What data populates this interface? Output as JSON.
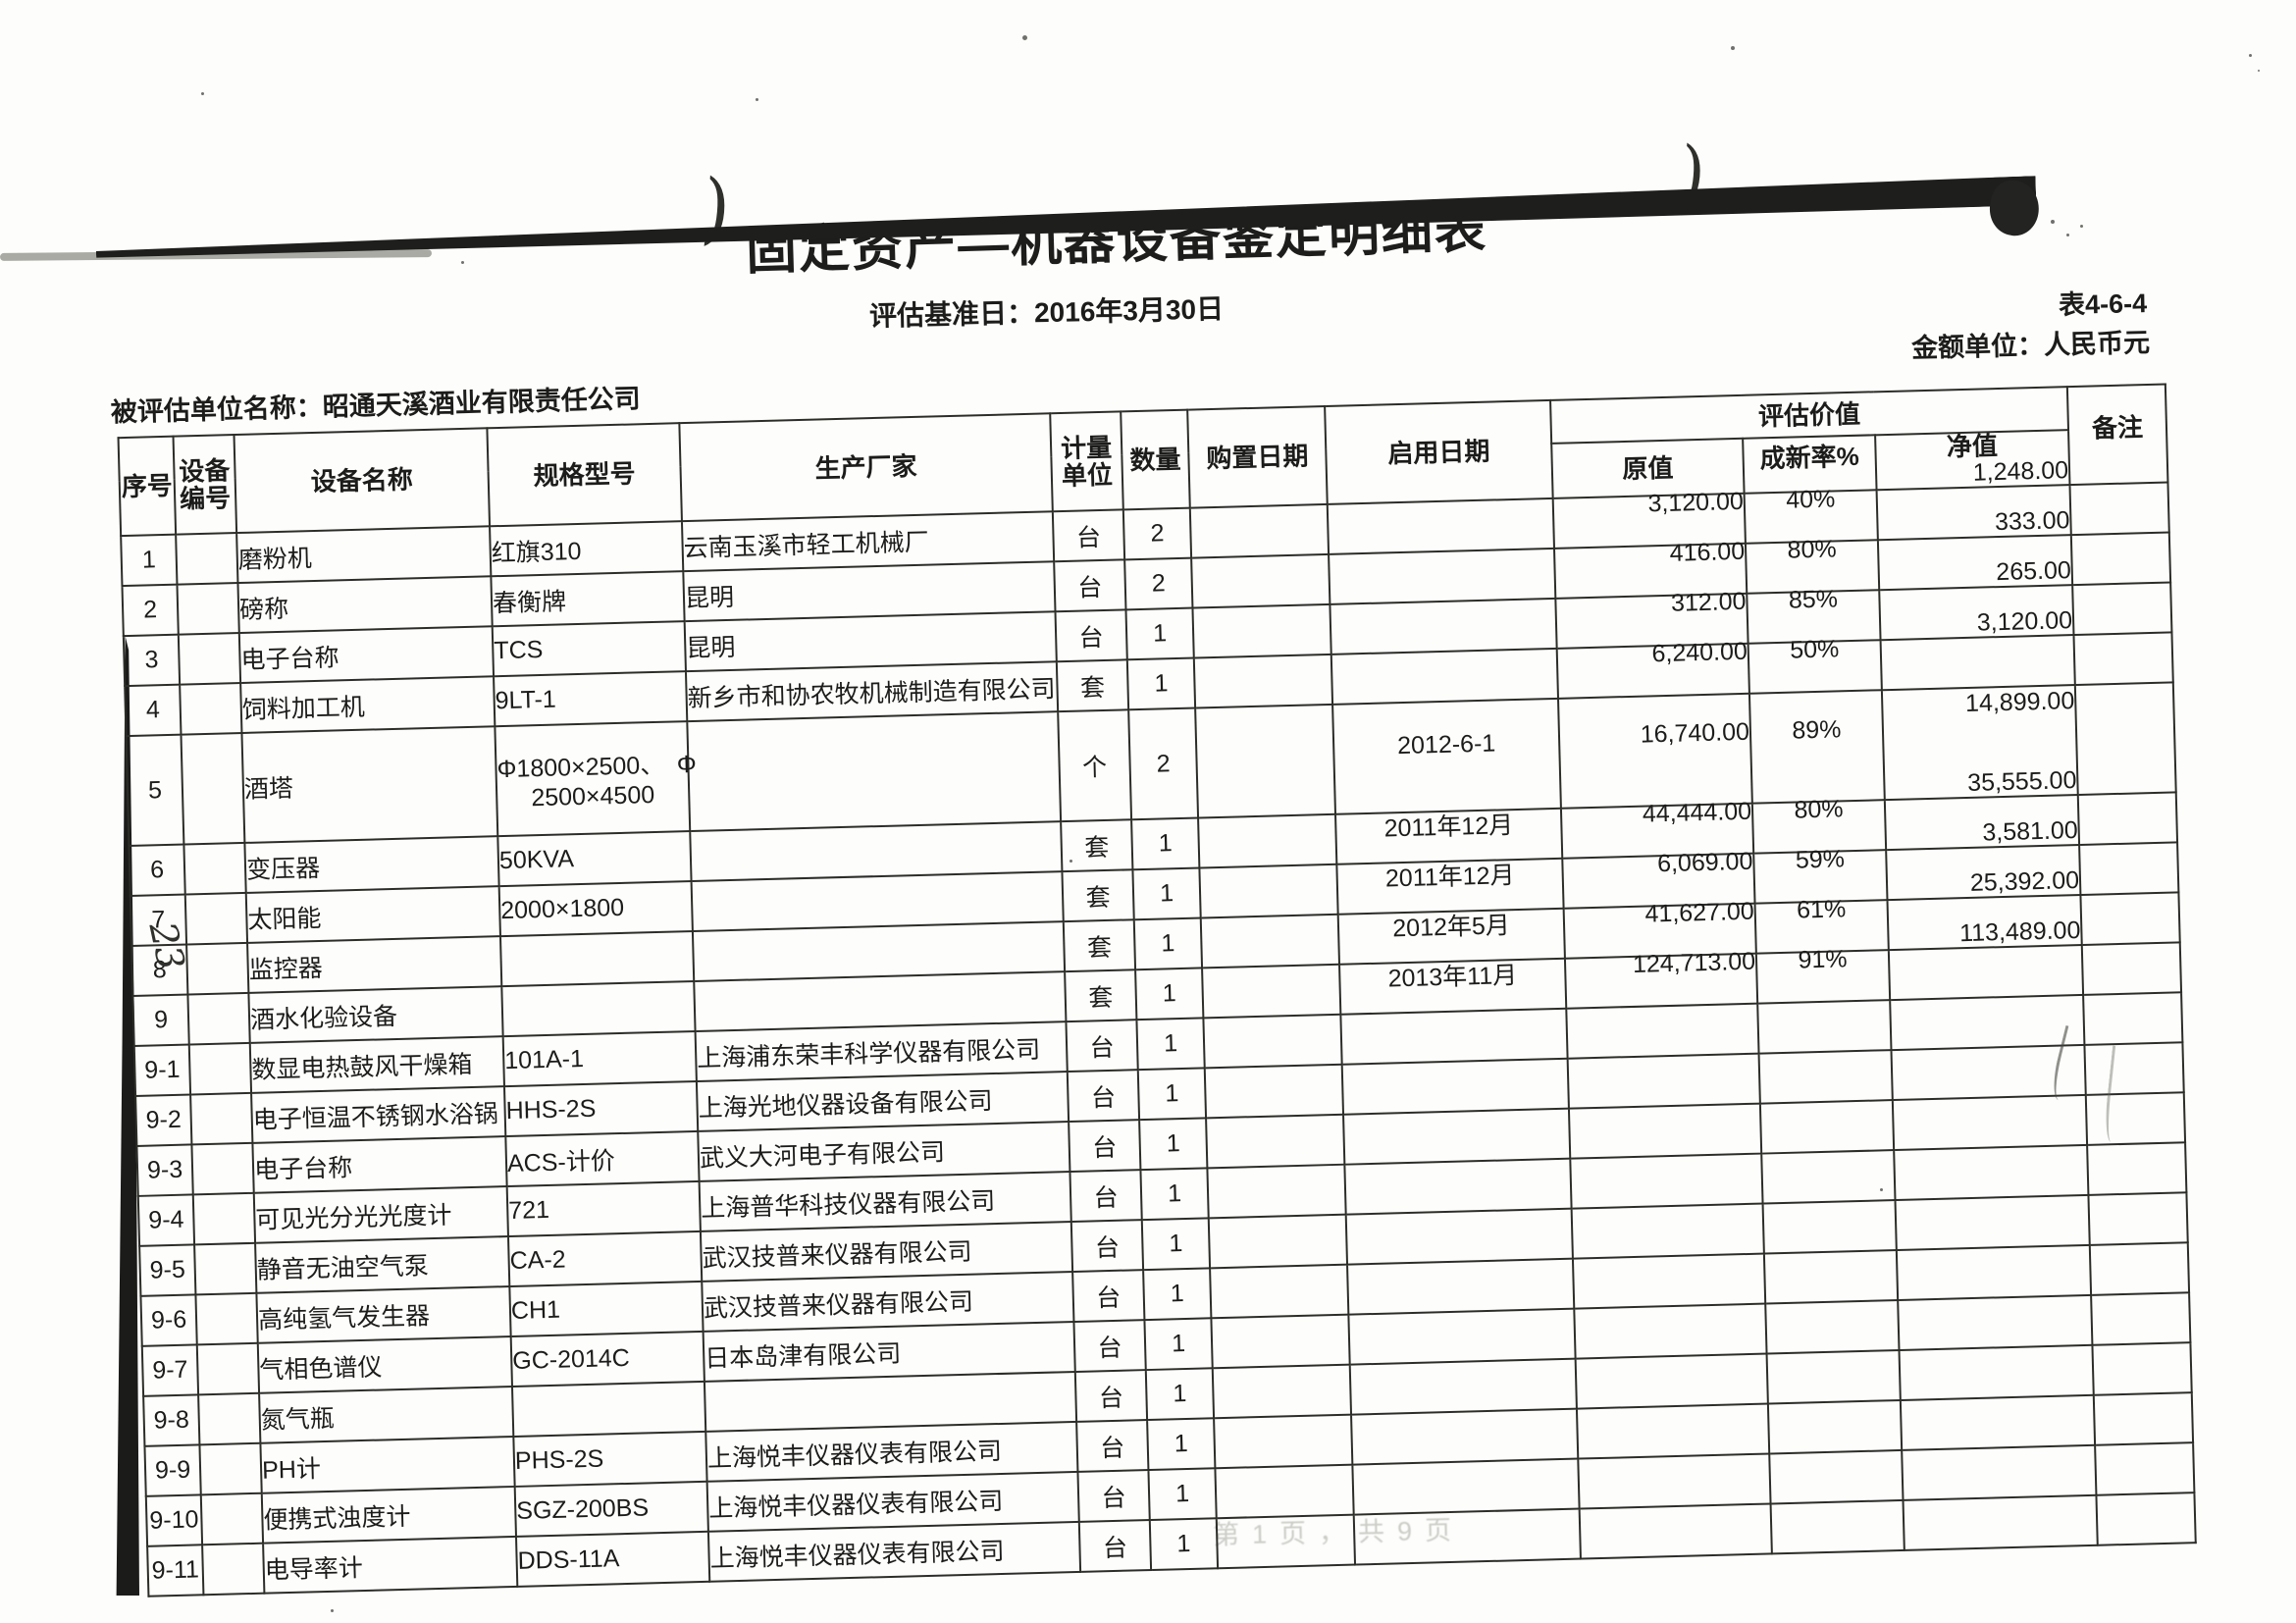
{
  "document": {
    "form_no": "表4-6-4",
    "currency_note": "金额单位：人民币元",
    "title": "固定资产—机器设备鉴定明细表",
    "appraisal_date_line": "评估基准日：2016年3月30日",
    "entity_line": "被评估单位名称：昭通天溪酒业有限责任公司",
    "page_footer": "第1页，共9页",
    "handwritten_note": "23",
    "pen_mark_left": ")",
    "pen_mark_right": ")"
  },
  "table": {
    "headers": {
      "seq": "序号",
      "device_no": "设备编号",
      "device_name": "设备名称",
      "spec": "规格型号",
      "manufacturer": "生产厂家",
      "unit": "计量单位",
      "qty": "数量",
      "purchase_date": "购置日期",
      "start_date": "启用日期",
      "appraisal_group": "评估价值",
      "orig_value": "原值",
      "new_rate": "成新率%",
      "net_value": "净值",
      "remark": "备注"
    },
    "rows": [
      {
        "seq": "1",
        "no": "",
        "name": "磨粉机",
        "spec": "红旗310",
        "maker": "云南玉溪市轻工机械厂",
        "unit": "台",
        "qty": "2",
        "purchase": "",
        "start": "",
        "orig": "3,120.00",
        "rate": "40%",
        "net": "1,248.00",
        "remark": ""
      },
      {
        "seq": "2",
        "no": "",
        "name": "磅称",
        "spec": "春衡牌",
        "maker": "昆明",
        "unit": "台",
        "qty": "2",
        "purchase": "",
        "start": "",
        "orig": "416.00",
        "rate": "80%",
        "net": "333.00",
        "remark": ""
      },
      {
        "seq": "3",
        "no": "",
        "name": "电子台称",
        "spec": "TCS",
        "maker": "昆明",
        "unit": "台",
        "qty": "1",
        "purchase": "",
        "start": "",
        "orig": "312.00",
        "rate": "85%",
        "net": "265.00",
        "remark": ""
      },
      {
        "seq": "4",
        "no": "",
        "name": "饲料加工机",
        "spec": "9LT-1",
        "maker": "新乡市和协农牧机械制造有限公司",
        "unit": "套",
        "qty": "1",
        "purchase": "",
        "start": "",
        "orig": "6,240.00",
        "rate": "50%",
        "net": "3,120.00",
        "remark": ""
      },
      {
        "seq": "5",
        "no": "",
        "name": "酒塔",
        "spec": "Φ1800×2500、　Φ",
        "spec2": "2500×4500",
        "maker": "",
        "unit": "个",
        "qty": "2",
        "purchase": "",
        "start": "2012-6-1",
        "orig": "16,740.00",
        "rate": "89%",
        "net": "14,899.00",
        "remark": "",
        "tall": true
      },
      {
        "seq": "6",
        "no": "",
        "name": "变压器",
        "spec": "50KVA",
        "maker": "",
        "unit": "套",
        "qty": "1",
        "purchase": "",
        "start": "2011年12月",
        "orig": "44,444.00",
        "rate": "80%",
        "net": "35,555.00",
        "remark": ""
      },
      {
        "seq": "7",
        "no": "",
        "name": "太阳能",
        "spec": "2000×1800",
        "maker": "",
        "unit": "套",
        "qty": "1",
        "purchase": "",
        "start": "2011年12月",
        "orig": "6,069.00",
        "rate": "59%",
        "net": "3,581.00",
        "remark": ""
      },
      {
        "seq": "8",
        "no": "",
        "name": "监控器",
        "spec": "",
        "maker": "",
        "unit": "套",
        "qty": "1",
        "purchase": "",
        "start": "2012年5月",
        "orig": "41,627.00",
        "rate": "61%",
        "net": "25,392.00",
        "remark": ""
      },
      {
        "seq": "9",
        "no": "",
        "name": "酒水化验设备",
        "spec": "",
        "maker": "",
        "unit": "套",
        "qty": "1",
        "purchase": "",
        "start": "2013年11月",
        "orig": "124,713.00",
        "rate": "91%",
        "net": "113,489.00",
        "remark": ""
      },
      {
        "seq": "9-1",
        "no": "",
        "name": "数显电热鼓风干燥箱",
        "spec": "101A-1",
        "maker": "上海浦东荣丰科学仪器有限公司",
        "unit": "台",
        "qty": "1",
        "purchase": "",
        "start": "",
        "orig": "",
        "rate": "",
        "net": "",
        "remark": ""
      },
      {
        "seq": "9-2",
        "no": "",
        "name": "电子恒温不锈钢水浴锅",
        "spec": "HHS-2S",
        "maker": "上海光地仪器设备有限公司",
        "unit": "台",
        "qty": "1",
        "purchase": "",
        "start": "",
        "orig": "",
        "rate": "",
        "net": "",
        "remark": ""
      },
      {
        "seq": "9-3",
        "no": "",
        "name": "电子台称",
        "spec": "ACS-计价",
        "maker": "武义大河电子有限公司",
        "unit": "台",
        "qty": "1",
        "purchase": "",
        "start": "",
        "orig": "",
        "rate": "",
        "net": "",
        "remark": ""
      },
      {
        "seq": "9-4",
        "no": "",
        "name": "可见光分光光度计",
        "spec": "721",
        "maker": "上海普华科技仪器有限公司",
        "unit": "台",
        "qty": "1",
        "purchase": "",
        "start": "",
        "orig": "",
        "rate": "",
        "net": "",
        "remark": ""
      },
      {
        "seq": "9-5",
        "no": "",
        "name": "静音无油空气泵",
        "spec": "CA-2",
        "maker": "武汉技普来仪器有限公司",
        "unit": "台",
        "qty": "1",
        "purchase": "",
        "start": "",
        "orig": "",
        "rate": "",
        "net": "",
        "remark": ""
      },
      {
        "seq": "9-6",
        "no": "",
        "name": "高纯氢气发生器",
        "spec": "CH1",
        "maker": "武汉技普来仪器有限公司",
        "unit": "台",
        "qty": "1",
        "purchase": "",
        "start": "",
        "orig": "",
        "rate": "",
        "net": "",
        "remark": ""
      },
      {
        "seq": "9-7",
        "no": "",
        "name": "气相色谱仪",
        "spec": "GC-2014C",
        "maker": "日本岛津有限公司",
        "unit": "台",
        "qty": "1",
        "purchase": "",
        "start": "",
        "orig": "",
        "rate": "",
        "net": "",
        "remark": ""
      },
      {
        "seq": "9-8",
        "no": "",
        "name": "氮气瓶",
        "spec": "",
        "maker": "",
        "unit": "台",
        "qty": "1",
        "purchase": "",
        "start": "",
        "orig": "",
        "rate": "",
        "net": "",
        "remark": ""
      },
      {
        "seq": "9-9",
        "no": "",
        "name": "PH计",
        "spec": "PHS-2S",
        "maker": "上海悦丰仪器仪表有限公司",
        "unit": "台",
        "qty": "1",
        "purchase": "",
        "start": "",
        "orig": "",
        "rate": "",
        "net": "",
        "remark": ""
      },
      {
        "seq": "9-10",
        "no": "",
        "name": "便携式浊度计",
        "spec": "SGZ-200BS",
        "maker": "上海悦丰仪器仪表有限公司",
        "unit": "台",
        "qty": "1",
        "purchase": "",
        "start": "",
        "orig": "",
        "rate": "",
        "net": "",
        "remark": ""
      },
      {
        "seq": "9-11",
        "no": "",
        "name": "电导率计",
        "spec": "DDS-11A",
        "maker": "上海悦丰仪器仪表有限公司",
        "unit": "台",
        "qty": "1",
        "purchase": "",
        "start": "",
        "orig": "",
        "rate": "",
        "net": "",
        "remark": ""
      }
    ]
  },
  "colors": {
    "ink": "#1c1c1a",
    "border": "#2c2c29",
    "artifact": "#1e1e1c",
    "faint_text": "#9b9b95"
  }
}
